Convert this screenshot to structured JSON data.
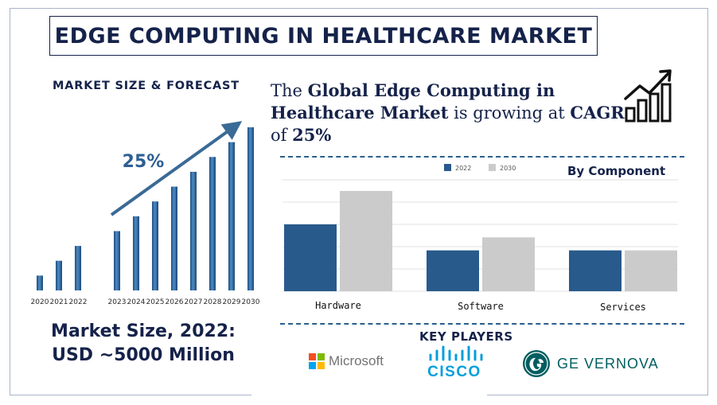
{
  "title": "EDGE COMPUTING IN HEALTHCARE MARKET",
  "left_heading": "MARKET SIZE & FORECAST",
  "market_size_line1": "Market Size, 2022:",
  "market_size_line2": "USD ~5000 Million",
  "headline": {
    "part1": "The ",
    "bold1": "Global Edge Computing in Healthcare Market",
    "part2": " is growing at ",
    "bold2": "CAGR",
    "part3": " of ",
    "bold3": "25%"
  },
  "by_component_label": "By Component",
  "key_players_label": "KEY PLAYERS",
  "players": {
    "microsoft": "Microsoft",
    "cisco": "CISCO",
    "ge": "GE VERNOVA"
  },
  "icons": {
    "growth": "growth-chart-icon",
    "microsoft": "microsoft-logo",
    "cisco": "cisco-logo",
    "ge": "ge-vernova-logo"
  },
  "colors": {
    "navy": "#15224a",
    "bar_2022": "#285a8c",
    "bar_2030": "#cbcbcb",
    "forecast_bar": "#2f6aa6",
    "arrow": "#3a6a96"
  },
  "chart_data": [
    {
      "type": "bar",
      "categories": [
        "2020",
        "2021",
        "2022",
        "2023",
        "2024",
        "2025",
        "2026",
        "2027",
        "2028",
        "2029",
        "2030"
      ],
      "values": [
        9,
        18,
        27,
        36,
        45,
        54,
        63,
        72,
        81,
        90,
        99
      ],
      "annotation": "25%",
      "grid": false
    },
    {
      "type": "bar",
      "categories": [
        "Hardware",
        "Software",
        "Services"
      ],
      "series": [
        {
          "name": "2022",
          "values": [
            72,
            44,
            44
          ]
        },
        {
          "name": "2030",
          "values": [
            108,
            58,
            44
          ]
        }
      ],
      "ylim": [
        0,
        120
      ],
      "grid": true,
      "legend": "top"
    }
  ]
}
